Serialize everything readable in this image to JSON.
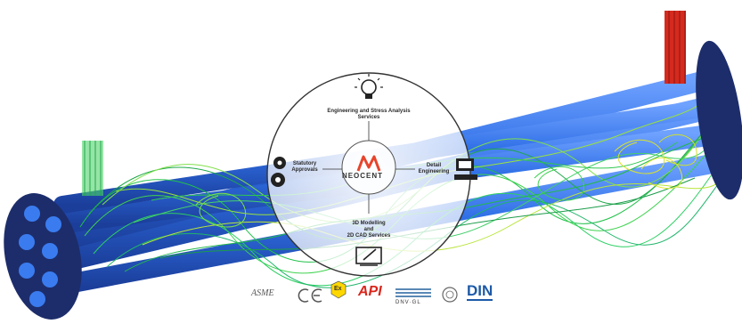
{
  "hub": {
    "brand": "NEOCENT",
    "services": {
      "engineering": "Engineering and Stress Analysis Services",
      "statutory": "Statutory Approvals",
      "detail": "Detail Engineering",
      "modelling_line1": "3D Modelling",
      "modelling_line2": "and",
      "modelling_line3": "2D CAD Services"
    },
    "icons": [
      "lightbulb-icon",
      "gears-icon",
      "computer-icon",
      "tablet-pen-icon"
    ]
  },
  "certifications": {
    "asme": "ASME",
    "ce": "CE",
    "ex": "Ex",
    "api": "API",
    "dnv": "DNV·GL",
    "din": "DIN"
  },
  "colors": {
    "tube": "#2f6fe6",
    "shell_end": "#1d2d6b",
    "flow_green": "#22c24a",
    "flow_yellow": "#d9e22a",
    "nozzle_red": "#d62a1e",
    "brand_red": "#e8442b",
    "api_red": "#d9261c",
    "din_blue": "#1d5aa8"
  }
}
